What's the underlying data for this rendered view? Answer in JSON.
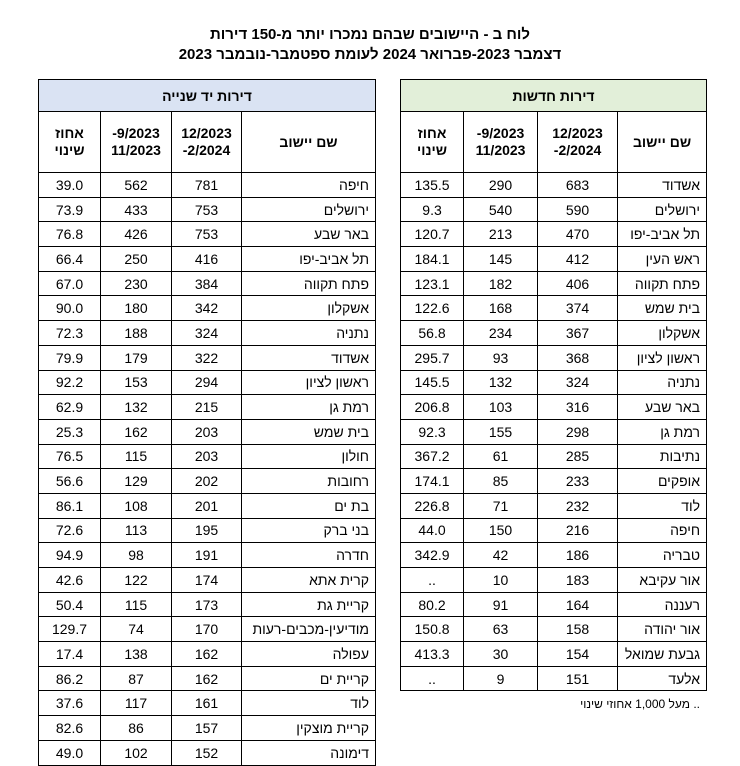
{
  "title": {
    "line1": "לוח ב - היישובים שבהם נמכרו יותר מ-150 דירות",
    "line2": "דצמבר 2023-פברואר 2024 לעומת ספטמבר-נובמבר 2023"
  },
  "new_table": {
    "title": "דירות חדשות",
    "headers": [
      "שם יישוב",
      "12/2023\n2/2024-",
      "9/2023-\n11/2023",
      "אחוז\nשינוי"
    ],
    "rows": [
      [
        "אשדוד",
        "683",
        "290",
        "135.5"
      ],
      [
        "ירושלים",
        "590",
        "540",
        "9.3"
      ],
      [
        "תל אביב-יפו",
        "470",
        "213",
        "120.7"
      ],
      [
        "ראש העין",
        "412",
        "145",
        "184.1"
      ],
      [
        "פתח תקווה",
        "406",
        "182",
        "123.1"
      ],
      [
        "בית שמש",
        "374",
        "168",
        "122.6"
      ],
      [
        "אשקלון",
        "367",
        "234",
        "56.8"
      ],
      [
        "ראשון לציון",
        "368",
        "93",
        "295.7"
      ],
      [
        "נתניה",
        "324",
        "132",
        "145.5"
      ],
      [
        "באר שבע",
        "316",
        "103",
        "206.8"
      ],
      [
        "רמת גן",
        "298",
        "155",
        "92.3"
      ],
      [
        "נתיבות",
        "285",
        "61",
        "367.2"
      ],
      [
        "אופקים",
        "233",
        "85",
        "174.1"
      ],
      [
        "לוד",
        "232",
        "71",
        "226.8"
      ],
      [
        "חיפה",
        "216",
        "150",
        "44.0"
      ],
      [
        "טבריה",
        "186",
        "42",
        "342.9"
      ],
      [
        "אור עקיבא",
        "183",
        "10",
        ".."
      ],
      [
        "רעננה",
        "164",
        "91",
        "80.2"
      ],
      [
        "אור יהודה",
        "158",
        "63",
        "150.8"
      ],
      [
        "גבעת שמואל",
        "154",
        "30",
        "413.3"
      ],
      [
        "אלעד",
        "151",
        "9",
        ".."
      ]
    ],
    "footnote": ".. מעל 1,000 אחוזי שינוי"
  },
  "used_table": {
    "title": "דירות יד שנייה",
    "headers": [
      "שם יישוב",
      "12/2023\n2/2024-",
      "9/2023-\n11/2023",
      "אחוז\nשינוי"
    ],
    "rows": [
      [
        "חיפה",
        "781",
        "562",
        "39.0"
      ],
      [
        "ירושלים",
        "753",
        "433",
        "73.9"
      ],
      [
        "באר שבע",
        "753",
        "426",
        "76.8"
      ],
      [
        "תל אביב-יפו",
        "416",
        "250",
        "66.4"
      ],
      [
        "פתח תקווה",
        "384",
        "230",
        "67.0"
      ],
      [
        "אשקלון",
        "342",
        "180",
        "90.0"
      ],
      [
        "נתניה",
        "324",
        "188",
        "72.3"
      ],
      [
        "אשדוד",
        "322",
        "179",
        "79.9"
      ],
      [
        "ראשון לציון",
        "294",
        "153",
        "92.2"
      ],
      [
        "רמת גן",
        "215",
        "132",
        "62.9"
      ],
      [
        "בית שמש",
        "203",
        "162",
        "25.3"
      ],
      [
        "חולון",
        "203",
        "115",
        "76.5"
      ],
      [
        "רחובות",
        "202",
        "129",
        "56.6"
      ],
      [
        "בת ים",
        "201",
        "108",
        "86.1"
      ],
      [
        "בני ברק",
        "195",
        "113",
        "72.6"
      ],
      [
        "חדרה",
        "191",
        "98",
        "94.9"
      ],
      [
        "קרית אתא",
        "174",
        "122",
        "42.6"
      ],
      [
        "קריית גת",
        "173",
        "115",
        "50.4"
      ],
      [
        "מודיעין-מכבים-רעות",
        "170",
        "74",
        "129.7"
      ],
      [
        "עפולה",
        "162",
        "138",
        "17.4"
      ],
      [
        "קריית ים",
        "162",
        "87",
        "86.2"
      ],
      [
        "לוד",
        "161",
        "117",
        "37.6"
      ],
      [
        "קריית מוצקין",
        "157",
        "86",
        "82.6"
      ],
      [
        "דימונה",
        "152",
        "102",
        "49.0"
      ]
    ]
  }
}
